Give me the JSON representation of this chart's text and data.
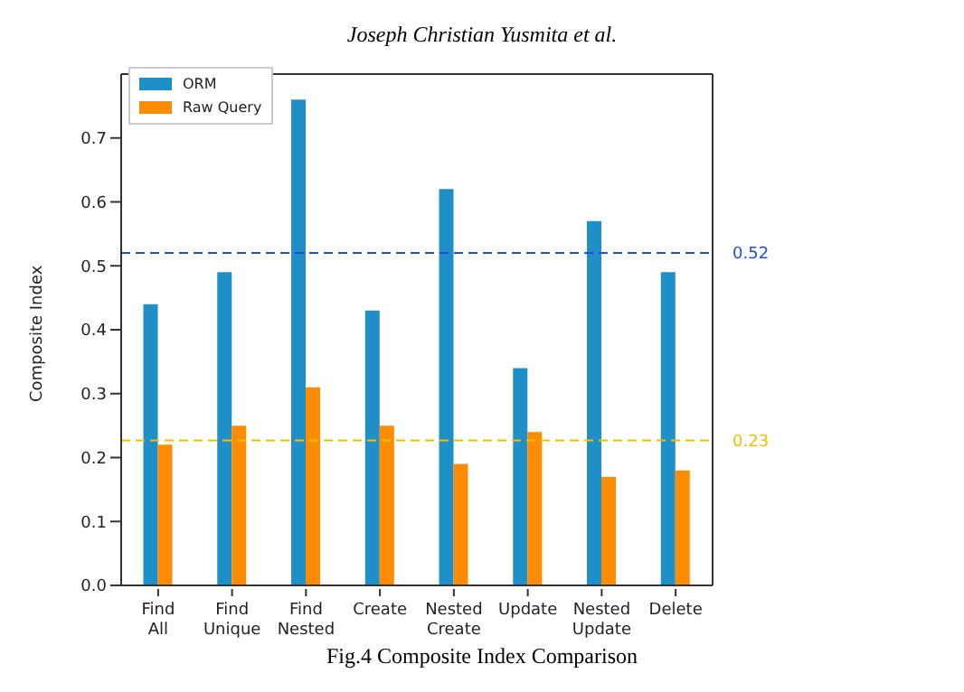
{
  "chart_data": {
    "type": "bar",
    "ylabel": "Composite Index",
    "annotations": [
      "Joseph Christian Yusmita et al.",
      "Fig.4 Composite Index Comparison"
    ],
    "categories": [
      "Find\nAll",
      "Find\nUnique",
      "Find\nNested",
      "Create",
      "Nested\nCreate",
      "Update",
      "Nested\nUpdate",
      "Delete"
    ],
    "series": [
      {
        "name": "ORM",
        "color": "#1f8fc8",
        "values": [
          0.44,
          0.49,
          0.76,
          0.43,
          0.62,
          0.34,
          0.57,
          0.49
        ]
      },
      {
        "name": "Raw Query",
        "color": "#ff8c00",
        "values": [
          0.22,
          0.25,
          0.31,
          0.25,
          0.19,
          0.24,
          0.17,
          0.18
        ]
      }
    ],
    "ylim": [
      0,
      0.8
    ],
    "yticks": [
      {
        "value": 0,
        "label": "0.0"
      },
      {
        "value": 0.1,
        "label": "0.1"
      },
      {
        "value": 0.2,
        "label": "0.2"
      },
      {
        "value": 0.3,
        "label": "0.3"
      },
      {
        "value": 0.4,
        "label": "0.4"
      },
      {
        "value": 0.5,
        "label": "0.5"
      },
      {
        "value": 0.6,
        "label": "0.6"
      },
      {
        "value": 0.7,
        "label": "0.7"
      }
    ],
    "ref_lines": [
      {
        "axis": "y",
        "value": 0.52,
        "label": "0.52",
        "color": "#1f4fe0",
        "line_style": "dashed"
      },
      {
        "axis": "y",
        "value": 0.227,
        "label": "0.23",
        "color": "#f0c000",
        "line_style": "dashed"
      }
    ],
    "legend": "top left",
    "grid": false
  }
}
